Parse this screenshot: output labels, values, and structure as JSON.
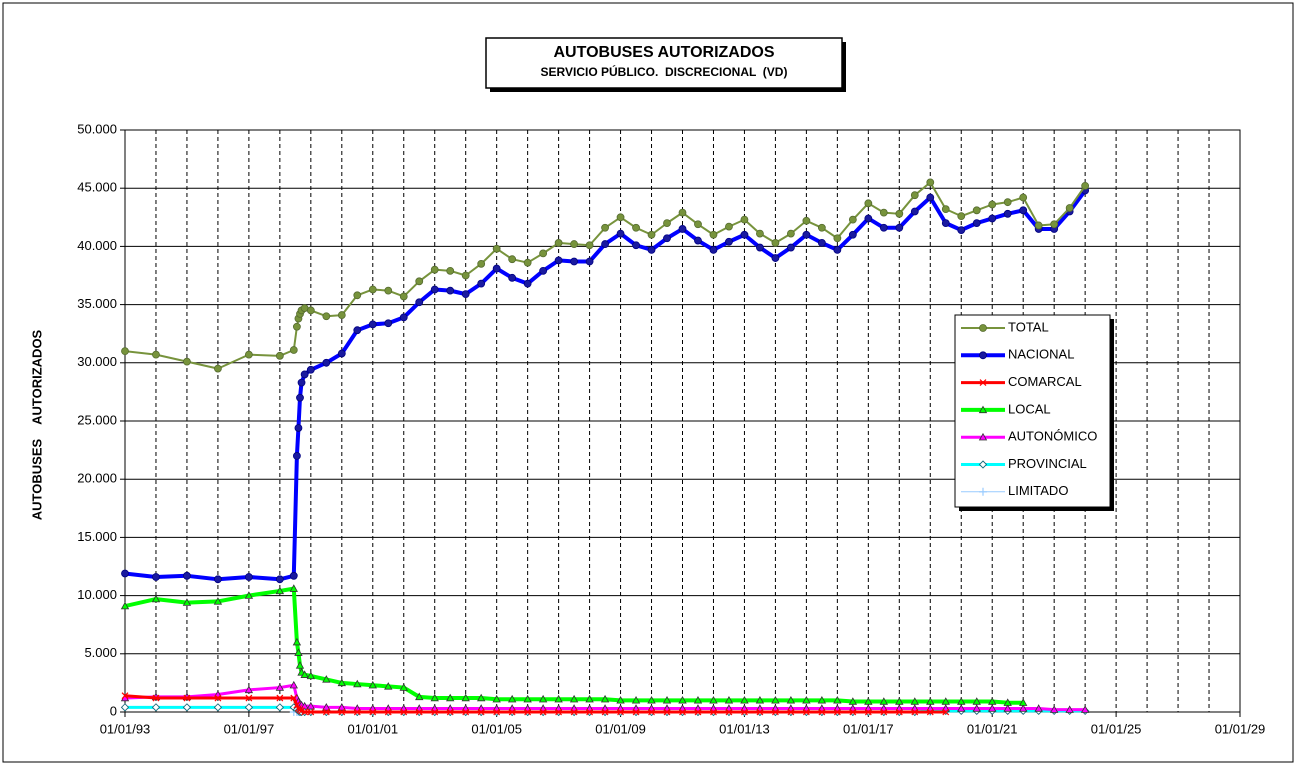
{
  "chart_data": {
    "type": "line",
    "title": "AUTOBUSES AUTORIZADOS",
    "subtitle": "SERVICIO PÚBLICO.  DISCRECIONAL  (VD)",
    "y_label": "AUTOBUSES    AUTORIZADOS",
    "x": [
      1993,
      1994,
      1995,
      1996,
      1997,
      1998,
      1998.45,
      1998.55,
      1998.6,
      1998.65,
      1998.7,
      1998.8,
      1999,
      1999.5,
      2000,
      2000.5,
      2001,
      2001.5,
      2002,
      2002.5,
      2003,
      2003.5,
      2004,
      2004.5,
      2005,
      2005.5,
      2006,
      2006.5,
      2007,
      2007.5,
      2008,
      2008.5,
      2009,
      2009.5,
      2010,
      2010.5,
      2011,
      2011.5,
      2012,
      2012.5,
      2013,
      2013.5,
      2014,
      2014.5,
      2015,
      2015.5,
      2016,
      2016.5,
      2017,
      2017.5,
      2018,
      2018.5,
      2019,
      2019.5,
      2020,
      2020.5,
      2021,
      2021.5,
      2022,
      2022.5,
      2023,
      2023.5,
      2024
    ],
    "series": [
      {
        "name": "TOTAL",
        "color": "#77933c",
        "marker": "circle",
        "width": 2,
        "values": [
          31000,
          30700,
          30100,
          29500,
          30700,
          30600,
          31100,
          33100,
          33800,
          34200,
          34500,
          34700,
          34500,
          34000,
          34100,
          35800,
          36300,
          36200,
          35700,
          37000,
          38000,
          37900,
          37500,
          38500,
          39800,
          38900,
          38600,
          39400,
          40300,
          40200,
          40100,
          41600,
          42500,
          41600,
          41000,
          42000,
          42900,
          41900,
          41000,
          41700,
          42300,
          41100,
          40300,
          41100,
          42200,
          41600,
          40700,
          42300,
          43700,
          42900,
          42800,
          44400,
          45500,
          43200,
          42600,
          43100,
          43600,
          43800,
          44200,
          41800,
          41900,
          43300,
          45200
        ]
      },
      {
        "name": "NACIONAL",
        "color": "#0000ff",
        "marker": "circle",
        "width": 4,
        "values": [
          11900,
          11600,
          11700,
          11400,
          11600,
          11400,
          11700,
          22000,
          24400,
          27000,
          28300,
          29000,
          29400,
          30000,
          30800,
          32800,
          33300,
          33400,
          33900,
          35200,
          36300,
          36200,
          35900,
          36800,
          38100,
          37300,
          36800,
          37900,
          38800,
          38700,
          38700,
          40200,
          41100,
          40100,
          39700,
          40700,
          41500,
          40500,
          39700,
          40400,
          41000,
          39900,
          39000,
          39900,
          41000,
          40300,
          39700,
          41000,
          42400,
          41600,
          41600,
          43000,
          44200,
          42000,
          41400,
          42000,
          42400,
          42800,
          43100,
          41500,
          41500,
          43000,
          44800
        ]
      },
      {
        "name": "COMARCAL",
        "color": "#ff0000",
        "marker": "cross",
        "width": 3,
        "values": [
          1400,
          1200,
          1200,
          1200,
          1200,
          1200,
          1200,
          600,
          300,
          200,
          100,
          0,
          0,
          0,
          0,
          0,
          0,
          0,
          0,
          0,
          0,
          0,
          0,
          0,
          0,
          0,
          0,
          0,
          0,
          0,
          0,
          0,
          0,
          0,
          0,
          0,
          0,
          0,
          0,
          0,
          0,
          0,
          0,
          0,
          0,
          0,
          0,
          0,
          0,
          0,
          0,
          0,
          0,
          0,
          null,
          null,
          null,
          null,
          null,
          null,
          null,
          null,
          null
        ]
      },
      {
        "name": "LOCAL",
        "color": "#00ff00",
        "marker": "triangle",
        "width": 4,
        "values": [
          9100,
          9700,
          9400,
          9500,
          10000,
          10400,
          10600,
          6000,
          5100,
          4000,
          3400,
          3200,
          3100,
          2800,
          2500,
          2400,
          2300,
          2200,
          2100,
          1300,
          1200,
          1200,
          1200,
          1200,
          1100,
          1100,
          1100,
          1100,
          1100,
          1100,
          1100,
          1100,
          1000,
          1000,
          1000,
          1000,
          1000,
          1000,
          1000,
          1000,
          1000,
          1000,
          1000,
          1000,
          1000,
          1000,
          1000,
          900,
          900,
          900,
          900,
          900,
          900,
          900,
          900,
          900,
          900,
          800,
          800,
          null,
          null,
          null,
          null
        ]
      },
      {
        "name": "AUTONÓMICO",
        "color": "#ff00ff",
        "marker": "triangle",
        "width": 3,
        "values": [
          1200,
          1300,
          1300,
          1500,
          1900,
          2100,
          2300,
          1200,
          900,
          700,
          600,
          500,
          500,
          400,
          400,
          300,
          300,
          300,
          300,
          300,
          300,
          300,
          300,
          300,
          300,
          300,
          300,
          300,
          300,
          300,
          300,
          300,
          300,
          300,
          300,
          300,
          300,
          300,
          300,
          300,
          300,
          300,
          300,
          300,
          300,
          300,
          300,
          300,
          300,
          300,
          300,
          300,
          300,
          300,
          300,
          300,
          300,
          300,
          300,
          300,
          200,
          200,
          200
        ]
      },
      {
        "name": "PROVINCIAL",
        "color": "#00ffff",
        "marker": "diamond",
        "width": 3,
        "values": [
          400,
          400,
          400,
          400,
          400,
          400,
          400,
          200,
          100,
          0,
          0,
          0,
          0,
          0,
          0,
          0,
          0,
          0,
          0,
          0,
          0,
          0,
          0,
          0,
          0,
          0,
          0,
          0,
          0,
          0,
          0,
          0,
          0,
          0,
          0,
          0,
          0,
          0,
          0,
          0,
          0,
          0,
          0,
          0,
          0,
          0,
          0,
          0,
          0,
          0,
          0,
          0,
          100,
          100,
          100,
          100,
          100,
          100,
          100,
          100,
          100,
          100,
          100
        ]
      },
      {
        "name": "LIMITADO",
        "color": "#99ccff",
        "marker": "plus",
        "width": 1,
        "values": [
          null,
          null,
          null,
          null,
          null,
          null,
          0,
          0,
          0,
          0,
          0,
          0,
          0,
          0,
          0,
          0,
          0,
          0,
          0,
          0,
          0,
          0,
          0,
          0,
          0,
          0,
          0,
          0,
          0,
          0,
          0,
          0,
          0,
          0,
          0,
          0,
          0,
          0,
          0,
          0,
          0,
          0,
          0,
          0,
          0,
          0,
          0,
          0,
          0,
          0,
          0,
          0,
          0,
          null,
          null,
          null,
          null,
          null,
          null,
          null,
          null,
          null,
          null
        ]
      }
    ],
    "xlim": [
      1993,
      2029
    ],
    "xticks": [
      {
        "value": 1993,
        "label": "01/01/93"
      },
      {
        "value": 1997,
        "label": "01/01/97"
      },
      {
        "value": 2001,
        "label": "01/01/01"
      },
      {
        "value": 2005,
        "label": "01/01/05"
      },
      {
        "value": 2009,
        "label": "01/01/09"
      },
      {
        "value": 2013,
        "label": "01/01/13"
      },
      {
        "value": 2017,
        "label": "01/01/17"
      },
      {
        "value": 2021,
        "label": "01/01/21"
      },
      {
        "value": 2025,
        "label": "01/01/25"
      },
      {
        "value": 2029,
        "label": "01/01/29"
      }
    ],
    "xgrid_step": 1,
    "ylim": [
      0,
      50000
    ],
    "yticks": [
      0,
      {
        "value": 5000,
        "label": "5.000"
      },
      {
        "value": 10000,
        "label": "10.000"
      },
      {
        "value": 15000,
        "label": "15.000"
      },
      {
        "value": 20000,
        "label": "20.000"
      },
      {
        "value": 25000,
        "label": "25.000"
      },
      {
        "value": 30000,
        "label": "30.000"
      },
      {
        "value": 35000,
        "label": "35.000"
      },
      {
        "value": 40000,
        "label": "40.000"
      },
      {
        "value": 45000,
        "label": "45.000"
      },
      {
        "value": 50000,
        "label": "50.000"
      }
    ],
    "grid": true,
    "legend": "right"
  }
}
